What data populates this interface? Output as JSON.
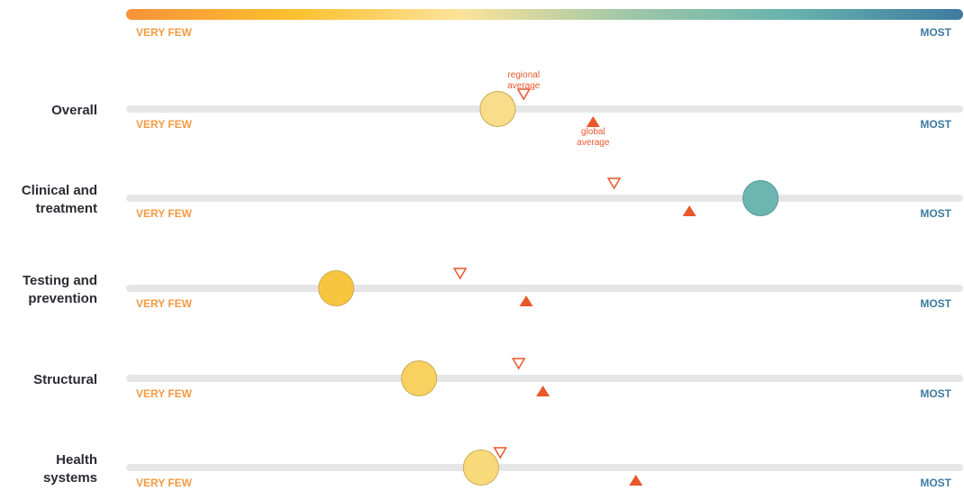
{
  "chart_data": {
    "type": "scatter",
    "scale": {
      "min_label": "VERY FEW",
      "max_label": "MOST",
      "min": 0,
      "max": 100,
      "colors": [
        "#f7923a",
        "#fbc02d",
        "#fde39a",
        "#9fc7a8",
        "#66b2ad",
        "#3e7aa0"
      ]
    },
    "annotations": {
      "regional": "regional average",
      "regional_lines": [
        "regional",
        "average"
      ],
      "global": "global average",
      "global_lines": [
        "global",
        "average"
      ]
    },
    "rows": [
      {
        "label_lines": [
          "Overall"
        ],
        "label": "Overall",
        "value": 44.4,
        "regional_average": 47.5,
        "global_average": 55.8,
        "color": "#f8de8a"
      },
      {
        "label_lines": [
          "Clinical and",
          "treatment"
        ],
        "label": "Clinical and treatment",
        "value": 75.8,
        "regional_average": 58.3,
        "global_average": 67.3,
        "color": "#6db5b1"
      },
      {
        "label_lines": [
          "Testing and",
          "prevention"
        ],
        "label": "Testing and prevention",
        "value": 25.1,
        "regional_average": 39.9,
        "global_average": 47.8,
        "color": "#f8c63e"
      },
      {
        "label_lines": [
          "Structural"
        ],
        "label": "Structural",
        "value": 35.0,
        "regional_average": 46.9,
        "global_average": 49.8,
        "color": "#f8d160"
      },
      {
        "label_lines": [
          "Health",
          "systems"
        ],
        "label": "Health systems",
        "value": 42.4,
        "regional_average": 44.7,
        "global_average": 60.9,
        "color": "#f9da7a"
      }
    ],
    "colors": {
      "track": "#e6e6e6",
      "marker": "#e8572a",
      "bubble_stroke": "#c9ab55",
      "teal_stroke": "#4c9a96"
    }
  }
}
